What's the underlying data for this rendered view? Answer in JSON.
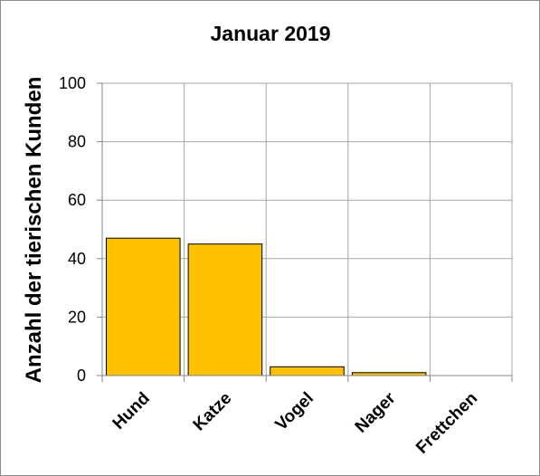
{
  "chart_data": {
    "type": "bar",
    "title": "Januar 2019",
    "xlabel": "",
    "ylabel": "Anzahl der tierischen Kunden",
    "categories": [
      "Hund",
      "Katze",
      "Vogel",
      "Nager",
      "Frettchen"
    ],
    "values": [
      47,
      45,
      3,
      1,
      0
    ],
    "ylim": [
      0,
      100
    ],
    "yticks": [
      "0",
      "20",
      "40",
      "60",
      "80",
      "100"
    ],
    "grid": true,
    "legend": "none",
    "colors": {
      "bar_fill": "#FFC000",
      "bar_stroke": "#000000",
      "grid": "#a6a6a6",
      "axis": "#868686"
    }
  }
}
